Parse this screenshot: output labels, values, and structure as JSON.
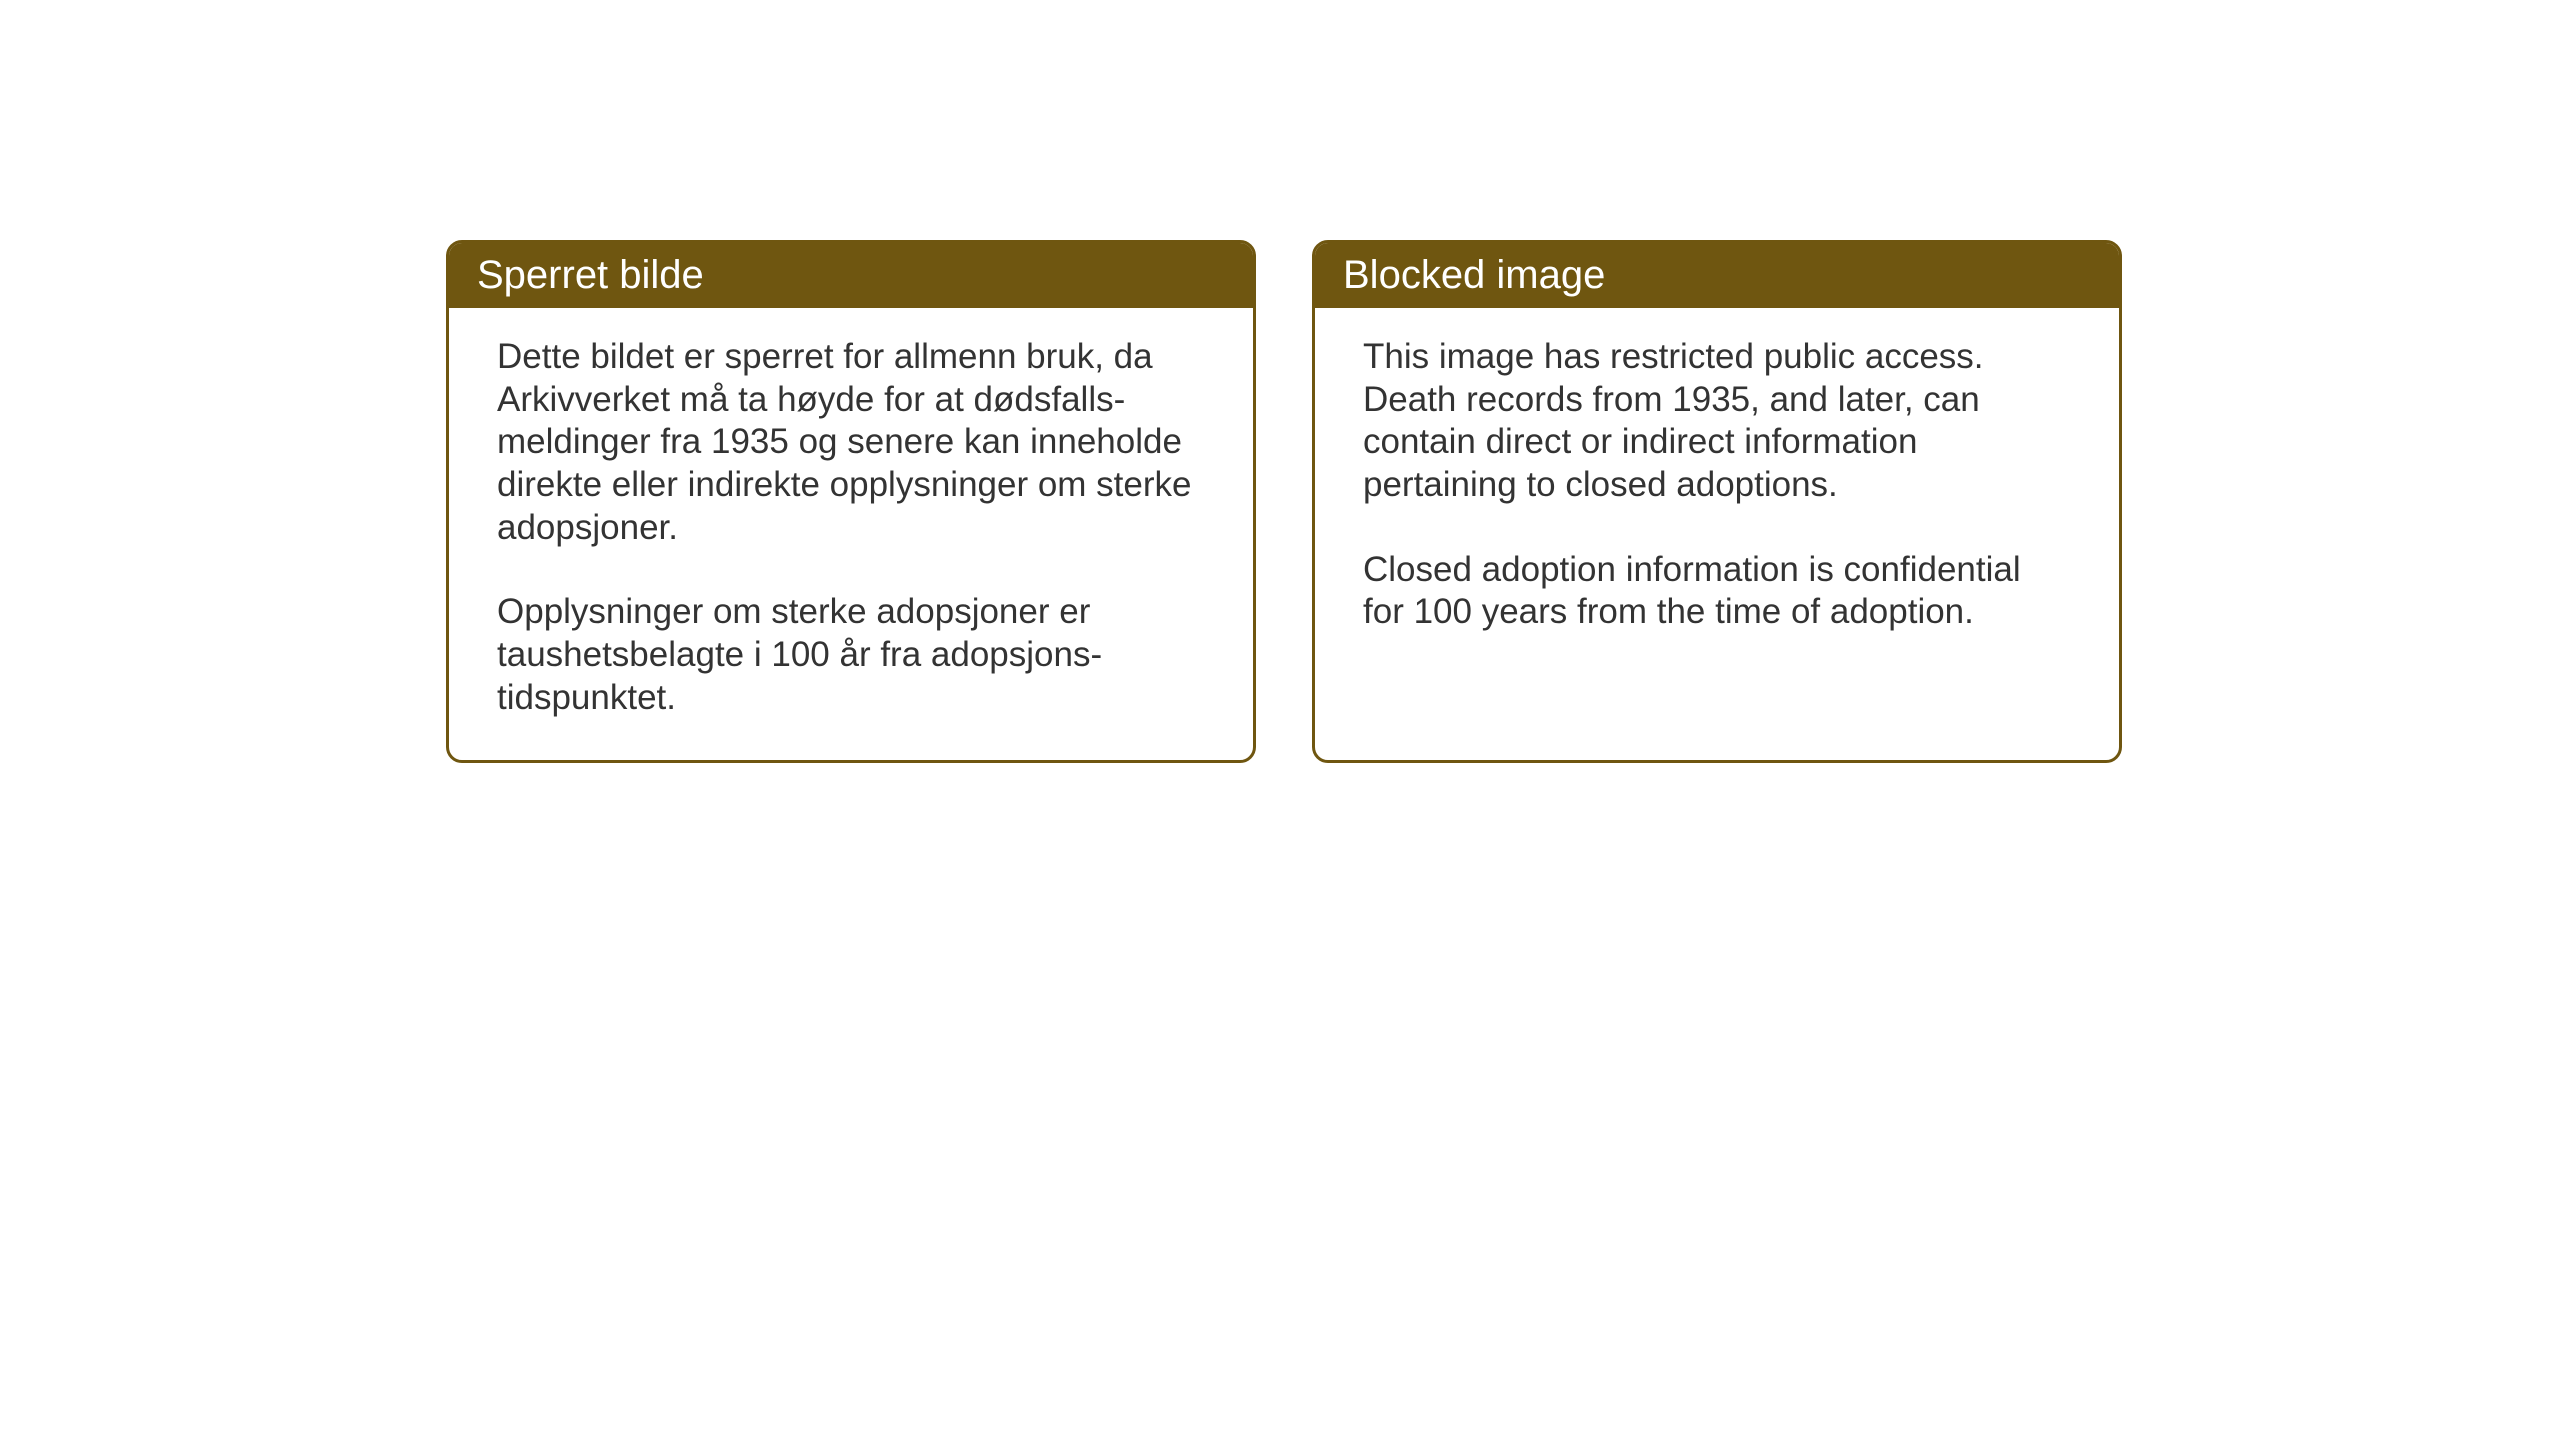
{
  "layout": {
    "background_color": "#ffffff",
    "box_border_color": "#6f5610",
    "header_bg_color": "#6f5610",
    "header_text_color": "#ffffff",
    "body_text_color": "#333333",
    "border_radius": 16,
    "border_width": 3,
    "header_fontsize": 40,
    "body_fontsize": 35
  },
  "boxes": {
    "norwegian": {
      "title": "Sperret bilde",
      "paragraph1": "Dette bildet er sperret for allmenn bruk, da Arkivverket må ta høyde for at dødsfalls-meldinger fra 1935 og senere kan inneholde direkte eller indirekte opplysninger om sterke adopsjoner.",
      "paragraph2": "Opplysninger om sterke adopsjoner er taushetsbelagte i 100 år fra adopsjons-tidspunktet."
    },
    "english": {
      "title": "Blocked image",
      "paragraph1": "This image has restricted public access. Death records from 1935, and later, can contain direct or indirect information pertaining to closed adoptions.",
      "paragraph2": "Closed adoption information is confidential for 100 years from the time of adoption."
    }
  }
}
